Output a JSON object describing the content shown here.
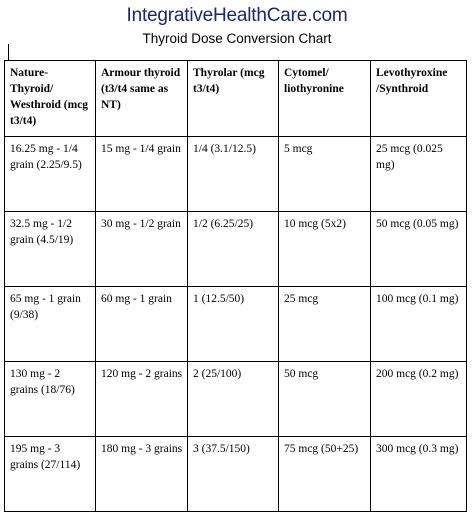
{
  "header": {
    "site": "IntegrativeHealthCare.com",
    "title": "Thyroid Dose Conversion Chart"
  },
  "table": {
    "columns": [
      "Nature-Thyroid/ Westhroid (mcg t3/t4)",
      "Armour thyroid (t3/t4 same as NT)",
      "Thyrolar (mcg t3/t4)",
      "Cytomel/ liothyronine",
      "Levothyroxine /Synthroid"
    ],
    "rows": [
      [
        "16.25 mg - 1/4 grain (2.25/9.5)",
        "15 mg - 1/4 grain",
        "1/4 (3.1/12.5)",
        "5 mcg",
        "25 mcg (0.025 mg)"
      ],
      [
        "32.5 mg - 1/2 grain (4.5/19)",
        "30 mg - 1/2 grain",
        "1/2 (6.25/25)",
        "10 mcg (5x2)",
        "50 mcg (0.05 mg)"
      ],
      [
        "65 mg - 1 grain (9/38)",
        "60 mg - 1 grain",
        "1 (12.5/50)",
        "25 mcg",
        "100 mcg (0.1 mg)"
      ],
      [
        "130 mg - 2 grains (18/76)",
        "120 mg - 2 grains",
        "2 (25/100)",
        "50 mcg",
        "200 mcg (0.2 mg)"
      ],
      [
        "195 mg - 3 grains (27/114)",
        "180 mg - 3 grains",
        "3 (37.5/150)",
        "75 mcg (50+25)",
        "300 mcg (0.3 mg)"
      ]
    ]
  },
  "colors": {
    "site_title": "#1a2a6e",
    "text": "#000000",
    "border": "#000000",
    "background": "#ffffff"
  }
}
